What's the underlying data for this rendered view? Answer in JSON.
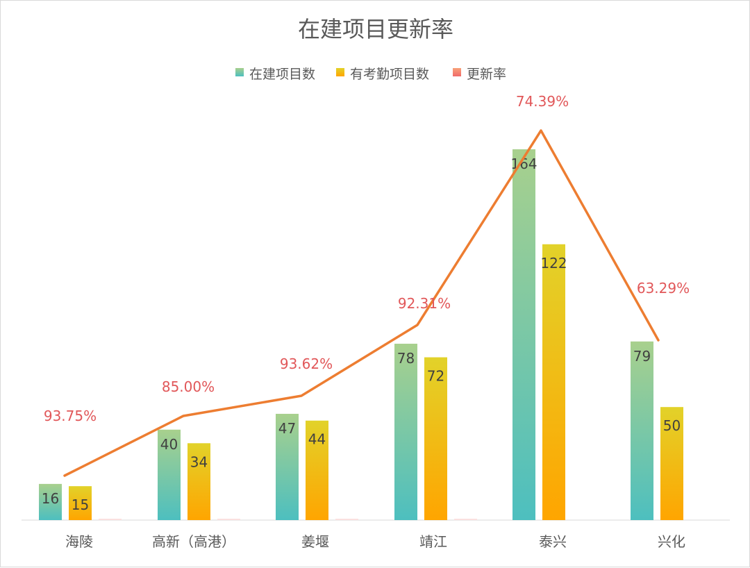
{
  "chart_data": {
    "type": "bar",
    "title": "在建项目更新率",
    "xlabel": "",
    "ylabel": "",
    "categories": [
      "海陵",
      "高新（高港）",
      "姜堰",
      "靖江",
      "泰兴",
      "兴化"
    ],
    "series": [
      {
        "name": "在建项目数",
        "kind": "bar",
        "values": [
          16,
          40,
          47,
          78,
          164,
          79
        ]
      },
      {
        "name": "有考勤项目数",
        "kind": "bar",
        "values": [
          15,
          34,
          44,
          72,
          122,
          50
        ]
      },
      {
        "name": "更新率",
        "kind": "line",
        "values": [
          93.75,
          85.0,
          93.62,
          92.31,
          74.39,
          63.29
        ],
        "labels": [
          "93.75%",
          "85.00%",
          "93.62%",
          "92.31%",
          "74.39%",
          "63.29%"
        ]
      }
    ],
    "ylim": [
      0,
      170
    ],
    "line_ylim": [
      50,
      100
    ],
    "legend_position": "top",
    "grid": false,
    "colors": {
      "series1_top": "#a8d08d",
      "series1_bottom": "#4dbfbf",
      "series2_top": "#e2d22a",
      "series2_bottom": "#ffa500",
      "line": "#ed7d31",
      "line_label": "#e15759",
      "legend_rate": "#f4826a"
    }
  }
}
